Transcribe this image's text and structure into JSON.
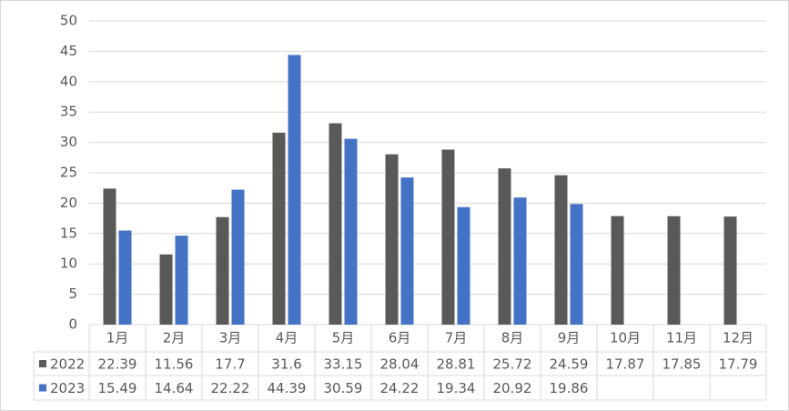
{
  "chart_data": {
    "type": "bar",
    "categories": [
      "1月",
      "2月",
      "3月",
      "4月",
      "5月",
      "6月",
      "7月",
      "8月",
      "9月",
      "10月",
      "11月",
      "12月"
    ],
    "series": [
      {
        "name": "2022",
        "color": "#595959",
        "values": [
          22.39,
          11.56,
          17.7,
          31.6,
          33.15,
          28.04,
          28.81,
          25.72,
          24.59,
          17.87,
          17.85,
          17.79
        ]
      },
      {
        "name": "2023",
        "color": "#4472c4",
        "values": [
          15.49,
          14.64,
          22.22,
          44.39,
          30.59,
          24.22,
          19.34,
          20.92,
          19.86,
          null,
          null,
          null
        ]
      }
    ],
    "ylim": [
      0,
      50
    ],
    "yticks": [
      0,
      5,
      10,
      15,
      20,
      25,
      30,
      35,
      40,
      45,
      50
    ],
    "grid": true
  }
}
